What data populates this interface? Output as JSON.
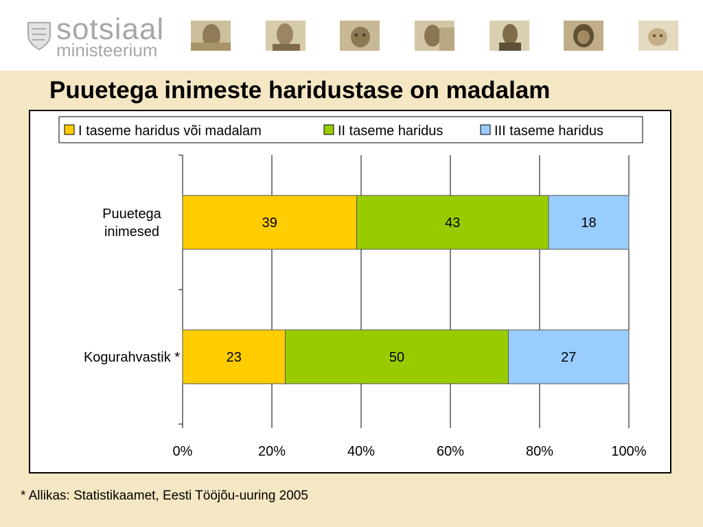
{
  "header": {
    "logo_main": "sotsiaal",
    "logo_sub": "ministeerium",
    "photos": [
      "photo-1",
      "photo-2",
      "photo-3",
      "photo-4",
      "photo-5",
      "photo-6",
      "photo-7"
    ]
  },
  "colors": {
    "series_1": "#ffcc00",
    "series_2": "#99cc00",
    "series_3": "#99ccff",
    "background": "#f5e6c4"
  },
  "source_note": "* Allikas: Statistikaamet, Eesti Tööjõu-uuring 2005",
  "chart_data": {
    "type": "bar",
    "orientation": "horizontal",
    "stacked": true,
    "title": "Puuetega inimeste haridustase on madalam",
    "categories": [
      "Puuetega inimesed",
      "Kogurahvastik *"
    ],
    "category_lines": [
      [
        "Puuetega",
        "inimesed"
      ],
      [
        "Kogurahvastik *"
      ]
    ],
    "series": [
      {
        "name": "I taseme haridus või madalam",
        "values": [
          39,
          23
        ]
      },
      {
        "name": "II taseme haridus",
        "values": [
          43,
          50
        ]
      },
      {
        "name": "III taseme haridus",
        "values": [
          18,
          27
        ]
      }
    ],
    "xlim": [
      0,
      100
    ],
    "x_ticks": [
      "0%",
      "20%",
      "40%",
      "60%",
      "80%",
      "100%"
    ],
    "grid": true,
    "legend": "top"
  }
}
